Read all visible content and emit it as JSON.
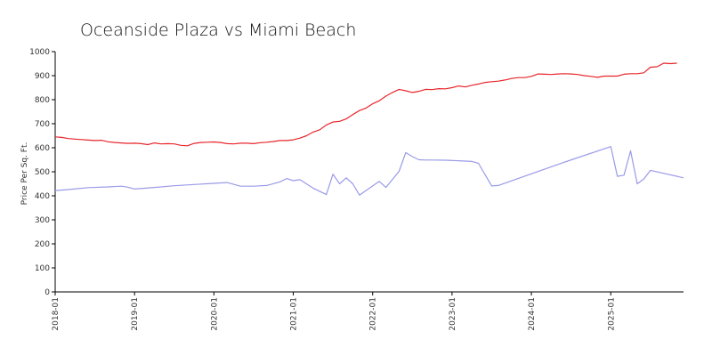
{
  "chart_data": {
    "type": "line",
    "title": "Oceanside Plaza vs Miami Beach",
    "xlabel": "",
    "ylabel": "Price Per Sq. Ft.",
    "ylim": [
      0,
      1000
    ],
    "yticks": [
      0,
      100,
      200,
      300,
      400,
      500,
      600,
      700,
      800,
      900,
      1000
    ],
    "xlim": [
      "2018-01",
      "2025-12"
    ],
    "xticks": [
      "2018-01",
      "2019-01",
      "2020-01",
      "2021-01",
      "2022-01",
      "2023-01",
      "2024-01",
      "2025-01"
    ],
    "grid": false,
    "legend": "none",
    "series": [
      {
        "color": "#e8262b",
        "points": [
          [
            "2018-01",
            645
          ],
          [
            "2018-02",
            643
          ],
          [
            "2018-03",
            638
          ],
          [
            "2018-04",
            636
          ],
          [
            "2018-05",
            634
          ],
          [
            "2018-06",
            632
          ],
          [
            "2018-07",
            630
          ],
          [
            "2018-08",
            631
          ],
          [
            "2018-09",
            625
          ],
          [
            "2018-10",
            622
          ],
          [
            "2018-11",
            620
          ],
          [
            "2018-12",
            618
          ],
          [
            "2019-01",
            619
          ],
          [
            "2019-02",
            617
          ],
          [
            "2019-03",
            613
          ],
          [
            "2019-04",
            620
          ],
          [
            "2019-05",
            616
          ],
          [
            "2019-06",
            617
          ],
          [
            "2019-07",
            616
          ],
          [
            "2019-08",
            610
          ],
          [
            "2019-09",
            608
          ],
          [
            "2019-10",
            618
          ],
          [
            "2019-11",
            622
          ],
          [
            "2019-12",
            623
          ],
          [
            "2020-01",
            624
          ],
          [
            "2020-02",
            622
          ],
          [
            "2020-03",
            617
          ],
          [
            "2020-04",
            616
          ],
          [
            "2020-05",
            619
          ],
          [
            "2020-06",
            619
          ],
          [
            "2020-07",
            617
          ],
          [
            "2020-08",
            621
          ],
          [
            "2020-09",
            623
          ],
          [
            "2020-10",
            626
          ],
          [
            "2020-11",
            630
          ],
          [
            "2020-12",
            630
          ],
          [
            "2021-01",
            633
          ],
          [
            "2021-02",
            640
          ],
          [
            "2021-03",
            650
          ],
          [
            "2021-04",
            665
          ],
          [
            "2021-05",
            675
          ],
          [
            "2021-06",
            695
          ],
          [
            "2021-07",
            707
          ],
          [
            "2021-08",
            710
          ],
          [
            "2021-09",
            720
          ],
          [
            "2021-10",
            738
          ],
          [
            "2021-11",
            755
          ],
          [
            "2021-12",
            765
          ],
          [
            "2022-01",
            783
          ],
          [
            "2022-02",
            795
          ],
          [
            "2022-03",
            815
          ],
          [
            "2022-04",
            830
          ],
          [
            "2022-05",
            843
          ],
          [
            "2022-06",
            837
          ],
          [
            "2022-07",
            830
          ],
          [
            "2022-08",
            835
          ],
          [
            "2022-09",
            843
          ],
          [
            "2022-10",
            842
          ],
          [
            "2022-11",
            846
          ],
          [
            "2022-12",
            845
          ],
          [
            "2023-01",
            850
          ],
          [
            "2023-02",
            857
          ],
          [
            "2023-03",
            853
          ],
          [
            "2023-04",
            860
          ],
          [
            "2023-05",
            865
          ],
          [
            "2023-06",
            872
          ],
          [
            "2023-07",
            875
          ],
          [
            "2023-08",
            877
          ],
          [
            "2023-09",
            882
          ],
          [
            "2023-10",
            888
          ],
          [
            "2023-11",
            892
          ],
          [
            "2023-12",
            892
          ],
          [
            "2024-01",
            897
          ],
          [
            "2024-02",
            907
          ],
          [
            "2024-03",
            906
          ],
          [
            "2024-04",
            905
          ],
          [
            "2024-05",
            907
          ],
          [
            "2024-06",
            908
          ],
          [
            "2024-07",
            907
          ],
          [
            "2024-08",
            905
          ],
          [
            "2024-09",
            900
          ],
          [
            "2024-10",
            897
          ],
          [
            "2024-11",
            893
          ],
          [
            "2024-12",
            898
          ],
          [
            "2025-01",
            898
          ],
          [
            "2025-02",
            898
          ],
          [
            "2025-03",
            906
          ],
          [
            "2025-04",
            908
          ],
          [
            "2025-05",
            908
          ],
          [
            "2025-06",
            912
          ],
          [
            "2025-07",
            935
          ],
          [
            "2025-08",
            937
          ],
          [
            "2025-09",
            952
          ],
          [
            "2025-10",
            950
          ],
          [
            "2025-11",
            952
          ]
        ]
      },
      {
        "color": "#9a9ae8",
        "points": [
          [
            "2018-01",
            422
          ],
          [
            "2018-03",
            426
          ],
          [
            "2018-06",
            434
          ],
          [
            "2018-09",
            437
          ],
          [
            "2018-11",
            440
          ],
          [
            "2018-12",
            436
          ],
          [
            "2019-01",
            428
          ],
          [
            "2019-04",
            435
          ],
          [
            "2019-07",
            442
          ],
          [
            "2019-10",
            447
          ],
          [
            "2020-01",
            452
          ],
          [
            "2020-03",
            455
          ],
          [
            "2020-05",
            440
          ],
          [
            "2020-07",
            440
          ],
          [
            "2020-09",
            443
          ],
          [
            "2020-11",
            458
          ],
          [
            "2020-12",
            472
          ],
          [
            "2021-01",
            463
          ],
          [
            "2021-02",
            467
          ],
          [
            "2021-04",
            432
          ],
          [
            "2021-06",
            405
          ],
          [
            "2021-07",
            490
          ],
          [
            "2021-08",
            450
          ],
          [
            "2021-09",
            475
          ],
          [
            "2021-10",
            450
          ],
          [
            "2021-11",
            403
          ],
          [
            "2022-02",
            460
          ],
          [
            "2022-03",
            435
          ],
          [
            "2022-05",
            502
          ],
          [
            "2022-06",
            580
          ],
          [
            "2022-07",
            563
          ],
          [
            "2022-08",
            550
          ],
          [
            "2022-09",
            549
          ],
          [
            "2022-10",
            549
          ],
          [
            "2022-12",
            548
          ],
          [
            "2023-02",
            546
          ],
          [
            "2023-04",
            543
          ],
          [
            "2023-05",
            535
          ],
          [
            "2023-07",
            441
          ],
          [
            "2023-08",
            443
          ],
          [
            "2024-06",
            540
          ],
          [
            "2025-01",
            605
          ],
          [
            "2025-02",
            481
          ],
          [
            "2025-03",
            486
          ],
          [
            "2025-04",
            587
          ],
          [
            "2025-05",
            450
          ],
          [
            "2025-06",
            470
          ],
          [
            "2025-07",
            506
          ],
          [
            "2025-12",
            475
          ]
        ]
      }
    ]
  }
}
